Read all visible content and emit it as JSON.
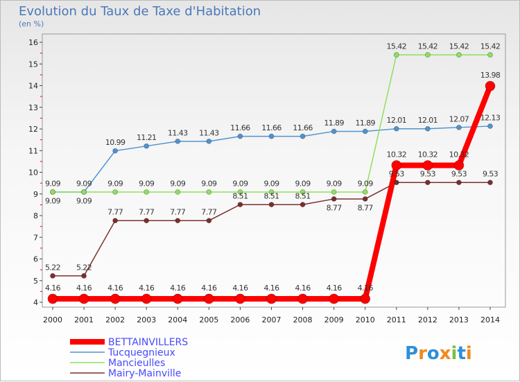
{
  "title": "Evolution du Taux de Taxe d'Habitation",
  "unit": "(en %)",
  "logo": "Proxiti",
  "chart_data": {
    "type": "line",
    "title": "Evolution du Taux de Taxe d'Habitation",
    "ylabel": "(en %)",
    "ylim": [
      4,
      16
    ],
    "yticks": [
      "4",
      "5",
      "6",
      "7",
      "8",
      "9",
      "10",
      "11",
      "12",
      "13",
      "14",
      "15",
      "16"
    ],
    "x": [
      "2000",
      "2001",
      "2002",
      "2003",
      "2004",
      "2005",
      "2006",
      "2007",
      "2008",
      "2009",
      "2010",
      "2011",
      "2012",
      "2013",
      "2014"
    ],
    "legend_position": "bottom-left",
    "series": [
      {
        "name": "Tucquegnieux",
        "color": "#4f93d0",
        "width": 1.5,
        "r": 3.5,
        "values": [
          9.09,
          9.09,
          10.99,
          11.21,
          11.43,
          11.43,
          11.66,
          11.66,
          11.66,
          11.89,
          11.89,
          12.01,
          12.01,
          12.07,
          12.13
        ]
      },
      {
        "name": "Mancieulles",
        "color": "#8ee05a",
        "width": 1.5,
        "r": 3.5,
        "values": [
          9.09,
          9.09,
          9.09,
          9.09,
          9.09,
          9.09,
          9.09,
          9.09,
          9.09,
          9.09,
          9.09,
          15.42,
          15.42,
          15.42,
          15.42
        ]
      },
      {
        "name": "Mairy-Mainville",
        "color": "#7a2e2e",
        "width": 1.5,
        "r": 3.5,
        "values": [
          5.22,
          5.22,
          7.77,
          7.77,
          7.77,
          7.77,
          8.51,
          8.51,
          8.51,
          8.77,
          8.77,
          9.53,
          9.53,
          9.53,
          9.53
        ]
      },
      {
        "name": "BETTAINVILLERS",
        "color": "#ff0000",
        "width": 8,
        "r": 7,
        "values": [
          4.16,
          4.16,
          4.16,
          4.16,
          4.16,
          4.16,
          4.16,
          4.16,
          4.16,
          4.16,
          4.16,
          10.32,
          10.32,
          10.32,
          13.98
        ]
      }
    ],
    "legend_order": [
      "BETTAINVILLERS",
      "Tucquegnieux",
      "Mancieulles",
      "Mairy-Mainville"
    ]
  }
}
